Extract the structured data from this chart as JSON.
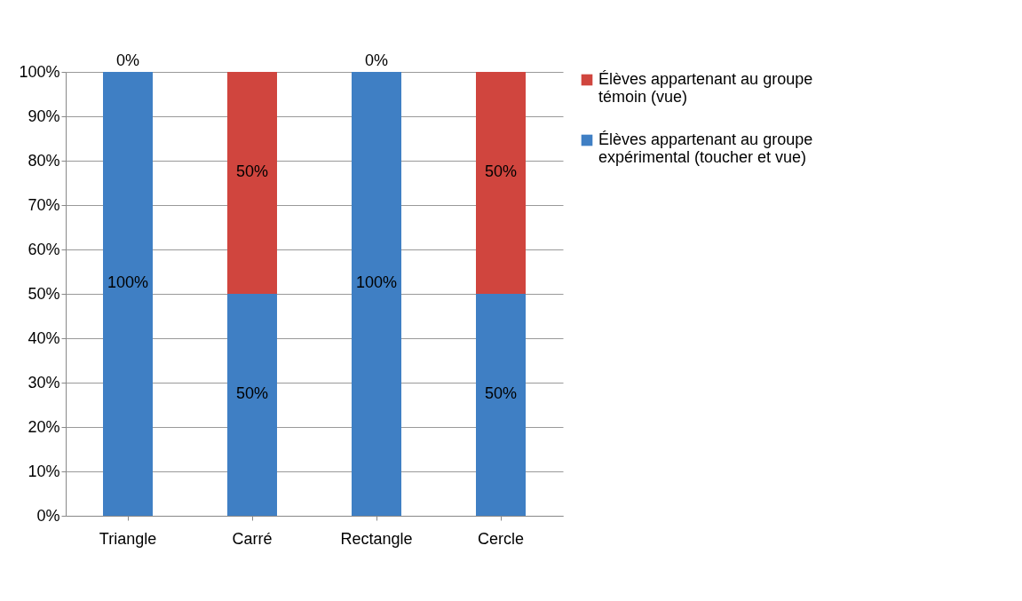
{
  "chart_data": {
    "type": "bar",
    "stacked": true,
    "categories": [
      "Triangle",
      "Carré",
      "Rectangle",
      "Cercle"
    ],
    "series": [
      {
        "name": "Élèves appartenant au groupe expérimental (toucher et vue)",
        "color": "#3f7fc4",
        "values": [
          100,
          50,
          100,
          50
        ],
        "value_labels": [
          "100%",
          "50%",
          "100%",
          "50%"
        ]
      },
      {
        "name": "Élèves appartenant au groupe témoin (vue)",
        "color": "#d0453e",
        "values": [
          0,
          50,
          0,
          50
        ],
        "value_labels": [
          "0%",
          "50%",
          "0%",
          "50%"
        ]
      }
    ],
    "ylim": [
      0,
      100
    ],
    "yticks": [
      {
        "value": 0,
        "label": "0%"
      },
      {
        "value": 10,
        "label": "10%"
      },
      {
        "value": 20,
        "label": "20%"
      },
      {
        "value": 30,
        "label": "30%"
      },
      {
        "value": 40,
        "label": "40%"
      },
      {
        "value": 50,
        "label": "50%"
      },
      {
        "value": 60,
        "label": "60%"
      },
      {
        "value": 70,
        "label": "70%"
      },
      {
        "value": 80,
        "label": "80%"
      },
      {
        "value": 90,
        "label": "90%"
      },
      {
        "value": 100,
        "label": "100%"
      }
    ],
    "grid": "y",
    "legend": "right"
  }
}
